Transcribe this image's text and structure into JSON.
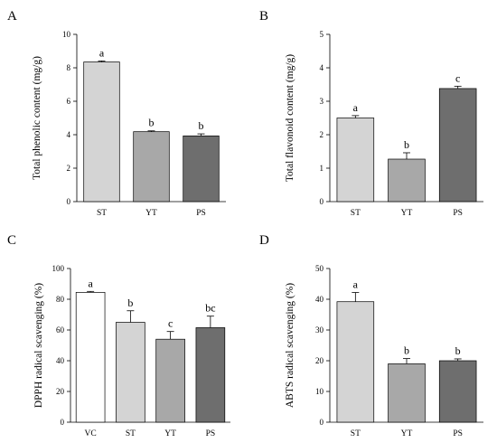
{
  "chart_data": [
    {
      "panel": "A",
      "type": "bar",
      "categories": [
        "ST",
        "YT",
        "PS"
      ],
      "values": [
        8.35,
        4.18,
        3.93
      ],
      "errors": [
        0.06,
        0.05,
        0.12
      ],
      "letters": [
        "a",
        "b",
        "b"
      ],
      "colors": [
        "#d4d4d4",
        "#a8a8a8",
        "#6e6e6e"
      ],
      "ylabel": "Total phenolic content (mg/g)",
      "ylim": [
        0,
        10
      ],
      "yticks": [
        0,
        2,
        4,
        6,
        8,
        10
      ]
    },
    {
      "panel": "B",
      "type": "bar",
      "categories": [
        "ST",
        "YT",
        "PS"
      ],
      "values": [
        2.5,
        1.27,
        3.38
      ],
      "errors": [
        0.07,
        0.19,
        0.07
      ],
      "letters": [
        "a",
        "b",
        "c"
      ],
      "colors": [
        "#d4d4d4",
        "#a8a8a8",
        "#6e6e6e"
      ],
      "ylabel": "Total flavonoid content (mg/g)",
      "ylim": [
        0,
        5
      ],
      "yticks": [
        0,
        1,
        2,
        3,
        4,
        5
      ]
    },
    {
      "panel": "C",
      "type": "bar",
      "categories": [
        "VC",
        "ST",
        "YT",
        "PS"
      ],
      "values": [
        84.5,
        65,
        54,
        61.5
      ],
      "errors": [
        0.6,
        7.5,
        5,
        7.5
      ],
      "letters": [
        "a",
        "b",
        "c",
        "bc"
      ],
      "colors": [
        "#ffffff",
        "#d4d4d4",
        "#a8a8a8",
        "#6e6e6e"
      ],
      "ylabel": "DPPH radical scavenging (%)",
      "ylim": [
        0,
        100
      ],
      "yticks": [
        0,
        20,
        40,
        60,
        80,
        100
      ]
    },
    {
      "panel": "D",
      "type": "bar",
      "categories": [
        "ST",
        "YT",
        "PS"
      ],
      "values": [
        39.2,
        19,
        20
      ],
      "errors": [
        3,
        1.7,
        0.6
      ],
      "letters": [
        "a",
        "b",
        "b"
      ],
      "colors": [
        "#d4d4d4",
        "#a8a8a8",
        "#6e6e6e"
      ],
      "ylabel": "ABTS radical scavenging (%)",
      "ylim": [
        0,
        50
      ],
      "yticks": [
        0,
        10,
        20,
        30,
        40,
        50
      ]
    }
  ]
}
